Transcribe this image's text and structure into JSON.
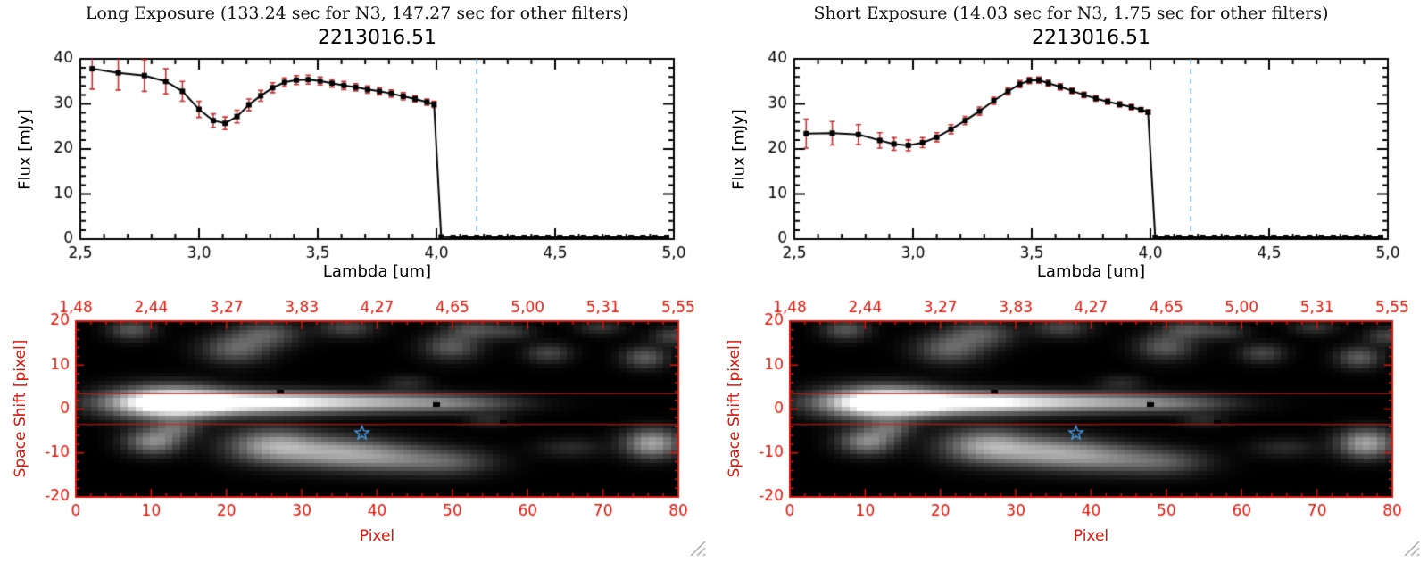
{
  "panels": [
    {
      "header": "Long Exposure (133.24 sec for N3, 147.27 sec for other filters)",
      "object_id": "2213016.51"
    },
    {
      "header": "Short Exposure (14.03 sec for N3, 1.75 sec for other filters)",
      "object_id": "2213016.51"
    }
  ],
  "labels": {
    "flux_axis": "Flux [mJy]",
    "lambda_axis": "Lambda [um]",
    "space_axis": "Space Shift [pixel]",
    "pixel_axis": "Pixel"
  },
  "colors": {
    "axis_black": "#000000",
    "plot_red": "#dd1408",
    "errorbar_red": "#c53030",
    "dashed_blue": "#5aa2d8",
    "star_blue": "#4a94d9",
    "background": "#ffffff"
  },
  "chart_data": [
    {
      "panel": 0,
      "type": "line",
      "title": "2213016.51",
      "xlabel": "Lambda [um]",
      "ylabel": "Flux [mJy]",
      "xlim": [
        2.5,
        5.0
      ],
      "ylim": [
        0,
        40
      ],
      "xtick_labels": [
        "2,5",
        "3,0",
        "3,5",
        "4,0",
        "4,5",
        "5,0"
      ],
      "xtick_values": [
        2.5,
        3.0,
        3.5,
        4.0,
        4.5,
        5.0
      ],
      "ytick_values": [
        0,
        10,
        20,
        30,
        40
      ],
      "marker": "filled-square",
      "line_color": "#000000",
      "errorbar_color": "#c53030",
      "dashed_line_x": 4.17,
      "dashed_line_color": "#5aa2d8",
      "x": [
        2.55,
        2.66,
        2.77,
        2.86,
        2.93,
        3.0,
        3.06,
        3.11,
        3.16,
        3.21,
        3.26,
        3.31,
        3.36,
        3.41,
        3.46,
        3.51,
        3.56,
        3.61,
        3.66,
        3.71,
        3.76,
        3.81,
        3.86,
        3.91,
        3.96,
        3.99,
        4.02,
        4.07,
        4.12,
        4.17,
        4.22,
        4.27,
        4.32,
        4.37,
        4.42,
        4.47,
        4.52,
        4.57,
        4.62,
        4.67,
        4.72,
        4.77,
        4.82,
        4.87,
        4.92,
        4.97
      ],
      "y": [
        37.8,
        36.9,
        36.3,
        35.0,
        32.8,
        28.8,
        26.3,
        25.7,
        27.2,
        29.8,
        31.8,
        33.6,
        34.8,
        35.3,
        35.4,
        35.1,
        34.6,
        34.1,
        33.7,
        33.2,
        32.8,
        32.3,
        31.7,
        31.1,
        30.4,
        29.9,
        0.5,
        0.4,
        0.4,
        0.4,
        0.4,
        0.4,
        0.4,
        0.4,
        0.4,
        0.4,
        0.4,
        0.4,
        0.4,
        0.4,
        0.4,
        0.4,
        0.4,
        0.4,
        0.4,
        0.4
      ],
      "yerr": [
        4.5,
        3.8,
        3.5,
        2.8,
        2.2,
        1.8,
        1.5,
        1.4,
        1.4,
        1.3,
        1.2,
        1.1,
        1.0,
        1.0,
        1.0,
        0.9,
        0.9,
        0.9,
        0.8,
        0.8,
        0.8,
        0.8,
        0.8,
        0.7,
        0.7,
        0.7,
        0.3,
        0.2,
        0.2,
        0.2,
        0.2,
        0.2,
        0.2,
        0.2,
        0.2,
        0.2,
        0.2,
        0.2,
        0.2,
        0.2,
        0.2,
        0.2,
        0.2,
        0.2,
        0.2,
        0.2
      ]
    },
    {
      "panel": 1,
      "type": "line",
      "title": "2213016.51",
      "xlabel": "Lambda [um]",
      "ylabel": "Flux [mJy]",
      "xlim": [
        2.5,
        5.0
      ],
      "ylim": [
        0,
        40
      ],
      "xtick_labels": [
        "2,5",
        "3,0",
        "3,5",
        "4,0",
        "4,5",
        "5,0"
      ],
      "xtick_values": [
        2.5,
        3.0,
        3.5,
        4.0,
        4.5,
        5.0
      ],
      "ytick_values": [
        0,
        10,
        20,
        30,
        40
      ],
      "marker": "filled-square",
      "line_color": "#000000",
      "errorbar_color": "#c53030",
      "dashed_line_x": 4.17,
      "dashed_line_color": "#5aa2d8",
      "x": [
        2.55,
        2.66,
        2.77,
        2.86,
        2.92,
        2.98,
        3.04,
        3.1,
        3.16,
        3.22,
        3.28,
        3.34,
        3.4,
        3.45,
        3.49,
        3.53,
        3.57,
        3.62,
        3.67,
        3.72,
        3.77,
        3.82,
        3.87,
        3.92,
        3.96,
        3.99,
        4.02,
        4.07,
        4.12,
        4.17,
        4.22,
        4.27,
        4.32,
        4.37,
        4.42,
        4.47,
        4.52,
        4.57,
        4.62,
        4.67,
        4.72,
        4.77,
        4.82,
        4.87,
        4.92,
        4.97
      ],
      "y": [
        23.4,
        23.5,
        23.2,
        21.9,
        21.1,
        20.8,
        21.4,
        22.6,
        24.4,
        26.3,
        28.4,
        30.7,
        32.8,
        34.4,
        35.2,
        35.3,
        34.6,
        33.8,
        32.9,
        32.0,
        31.2,
        30.5,
        29.9,
        29.3,
        28.7,
        28.2,
        0.4,
        0.4,
        0.4,
        0.4,
        0.4,
        0.4,
        0.4,
        0.4,
        0.4,
        0.4,
        0.4,
        0.4,
        0.4,
        0.4,
        0.4,
        0.4,
        0.4,
        0.4,
        0.4,
        0.4
      ],
      "yerr": [
        3.2,
        2.6,
        2.2,
        1.7,
        1.4,
        1.2,
        1.1,
        1.0,
        1.0,
        0.9,
        0.9,
        0.8,
        0.8,
        0.8,
        0.7,
        0.7,
        0.7,
        0.7,
        0.6,
        0.6,
        0.6,
        0.6,
        0.6,
        0.6,
        0.5,
        0.5,
        0.3,
        0.2,
        0.2,
        0.2,
        0.2,
        0.2,
        0.2,
        0.2,
        0.2,
        0.2,
        0.2,
        0.2,
        0.2,
        0.2,
        0.2,
        0.2,
        0.2,
        0.2,
        0.2,
        0.2
      ]
    },
    {
      "panel": 0,
      "type": "heatmap",
      "xlabel": "Pixel",
      "ylabel": "Space Shift [pixel]",
      "xlim": [
        0,
        80
      ],
      "ylim": [
        -20,
        20
      ],
      "top_axis_labels": [
        "1,48",
        "2,44",
        "3,27",
        "3,83",
        "4,27",
        "4,65",
        "5,00",
        "5,31",
        "5,55"
      ],
      "xtick_values": [
        0,
        10,
        20,
        30,
        40,
        50,
        60,
        70,
        80
      ],
      "ytick_values": [
        20,
        10,
        0,
        -10,
        -20
      ],
      "axis_color": "#dd1408",
      "aperture_lines_y": [
        3.5,
        -3.5
      ],
      "star_marker": {
        "x": 38,
        "y": -5.5,
        "color": "#4a94d9"
      },
      "features": [
        {
          "x": 12,
          "y": 1.5,
          "sx": 5,
          "sy": 2.4,
          "a": 1.0
        },
        {
          "x": 20,
          "y": 1.5,
          "sx": 9,
          "sy": 1.7,
          "a": 0.8
        },
        {
          "x": 31,
          "y": 1.5,
          "sx": 11,
          "sy": 1.5,
          "a": 0.5
        },
        {
          "x": 44,
          "y": 1.5,
          "sx": 8,
          "sy": 1.4,
          "a": 0.3
        },
        {
          "x": 52,
          "y": 1.0,
          "sx": 5,
          "sy": 1.2,
          "a": 0.15
        },
        {
          "x": 10,
          "y": -7.5,
          "sx": 2.5,
          "sy": 2.0,
          "a": 0.5
        },
        {
          "x": 13,
          "y": -4.5,
          "sx": 2.0,
          "sy": 1.5,
          "a": 0.28
        },
        {
          "x": 26,
          "y": -8.5,
          "sx": 4.0,
          "sy": 2.6,
          "a": 0.55
        },
        {
          "x": 34,
          "y": -10,
          "sx": 5.0,
          "sy": 2.4,
          "a": 0.5
        },
        {
          "x": 42,
          "y": -11.5,
          "sx": 5.0,
          "sy": 2.2,
          "a": 0.38
        },
        {
          "x": 50,
          "y": -12.5,
          "sx": 4.0,
          "sy": 2.0,
          "a": 0.24
        },
        {
          "x": 21,
          "y": 14,
          "sx": 3,
          "sy": 2.2,
          "a": 0.33
        },
        {
          "x": 25,
          "y": 17.5,
          "sx": 3,
          "sy": 2.0,
          "a": 0.3
        },
        {
          "x": 7,
          "y": 18.5,
          "sx": 2,
          "sy": 1.6,
          "a": 0.28
        },
        {
          "x": 36,
          "y": 19,
          "sx": 2.5,
          "sy": 1.6,
          "a": 0.22
        },
        {
          "x": 50,
          "y": 14.5,
          "sx": 2.5,
          "sy": 2.0,
          "a": 0.3
        },
        {
          "x": 53,
          "y": 18.5,
          "sx": 2.5,
          "sy": 1.5,
          "a": 0.26
        },
        {
          "x": 63,
          "y": 13,
          "sx": 2,
          "sy": 1.5,
          "a": 0.22
        },
        {
          "x": 58,
          "y": 18,
          "sx": 2,
          "sy": 1.3,
          "a": 0.16
        },
        {
          "x": 70,
          "y": 19,
          "sx": 2,
          "sy": 1.2,
          "a": 0.15
        },
        {
          "x": 77,
          "y": -8,
          "sx": 2.5,
          "sy": 2.2,
          "a": 0.6
        },
        {
          "x": 76,
          "y": 12,
          "sx": 2,
          "sy": 1.7,
          "a": 0.3
        },
        {
          "x": 80,
          "y": 17,
          "sx": 2,
          "sy": 1.4,
          "a": 0.22
        },
        {
          "x": 44,
          "y": 6,
          "sx": 2,
          "sy": 1.2,
          "a": 0.12
        },
        {
          "x": 55,
          "y": -2.5,
          "sx": 2,
          "sy": 1.1,
          "a": 0.12
        },
        {
          "x": 66,
          "y": -9,
          "sx": 3,
          "sy": 1.5,
          "a": 0.12
        }
      ],
      "dark_pixels": [
        {
          "x": 27,
          "y": 4
        },
        {
          "x": 48,
          "y": 1
        },
        {
          "x": 57,
          "y": -3
        }
      ]
    },
    {
      "panel": 1,
      "type": "heatmap",
      "xlabel": "Pixel",
      "ylabel": "Space Shift [pixel]",
      "xlim": [
        0,
        80
      ],
      "ylim": [
        -20,
        20
      ],
      "top_axis_labels": [
        "1,48",
        "2,44",
        "3,27",
        "3,83",
        "4,27",
        "4,65",
        "5,00",
        "5,31",
        "5,55"
      ],
      "xtick_values": [
        0,
        10,
        20,
        30,
        40,
        50,
        60,
        70,
        80
      ],
      "ytick_values": [
        20,
        10,
        0,
        -10,
        -20
      ],
      "axis_color": "#dd1408",
      "aperture_lines_y": [
        3.5,
        -3.5
      ],
      "star_marker": {
        "x": 38,
        "y": -5.5,
        "color": "#4a94d9"
      },
      "features_same_as": 2
    }
  ]
}
